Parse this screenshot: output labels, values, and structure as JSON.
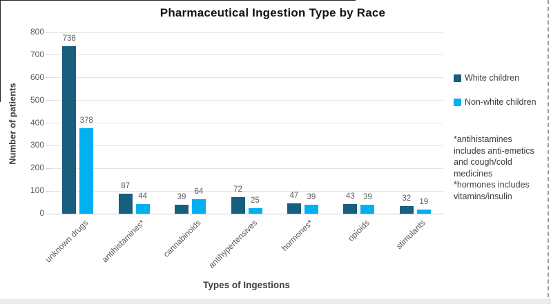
{
  "chart_data": {
    "type": "bar",
    "title": "Pharmaceutical Ingestion Type by Race",
    "xlabel": "Types of Ingestions",
    "ylabel": "Number of patients",
    "categories": [
      "unknown drugs",
      "antihistamines*",
      "cannabinoids",
      "antihypertensives",
      "hormones*",
      "opioids",
      "stimulants"
    ],
    "series": [
      {
        "name": "White children",
        "color": "#175E7F",
        "values": [
          738,
          87,
          39,
          72,
          47,
          43,
          32
        ]
      },
      {
        "name": "Non-white children",
        "color": "#00B0F0",
        "values": [
          378,
          44,
          64,
          25,
          39,
          39,
          19
        ]
      }
    ],
    "ylim": [
      0,
      800
    ],
    "ytick_step": 100,
    "grid": true,
    "data_labels": true,
    "legend_position": "right"
  },
  "annotation": {
    "text": "*antihistamines\nincludes anti-emetics\nand cough/cold\nmedicines\n*hormones includes\nvitamins/insulin"
  },
  "colors": {
    "series_white_children": "#175E7F",
    "series_non_white_children": "#00B0F0",
    "gridline": "#e3e3e3",
    "axis_text": "#595959",
    "axis_title_text": "#404040",
    "title_text": "#111111"
  }
}
